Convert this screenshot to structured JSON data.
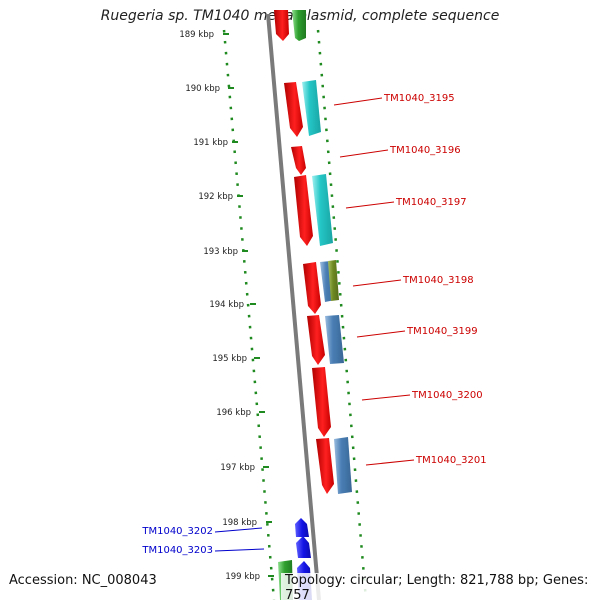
{
  "title": "Ruegeria sp. TM1040 mega plasmid, complete sequence",
  "footer": {
    "accession": "Accession: NC_008043",
    "stats": "Topology: circular; Length: 821,788 bp; Genes: 757"
  },
  "colors": {
    "forward_gene": "#e8141c",
    "reverse_cyan": "#2ec9c9",
    "reverse_steelblue": "#4a7fb5",
    "reverse_olive": "#6f8a23",
    "green_gene": "#2ea02e",
    "blue_gene": "#1414e6",
    "backbone": "#808080",
    "dots": "#1f8a1f",
    "label_red": "#cc0000",
    "label_blue": "#0000cc"
  },
  "ticks": [
    "189 kbp",
    "190 kbp",
    "191 kbp",
    "192 kbp",
    "193 kbp",
    "194 kbp",
    "195 kbp",
    "196 kbp",
    "197 kbp",
    "198 kbp",
    "199 kbp"
  ],
  "gene_labels": [
    {
      "text": "TM1040_3195",
      "color": "red"
    },
    {
      "text": "TM1040_3196",
      "color": "red"
    },
    {
      "text": "TM1040_3197",
      "color": "red"
    },
    {
      "text": "TM1040_3198",
      "color": "red"
    },
    {
      "text": "TM1040_3199",
      "color": "red"
    },
    {
      "text": "TM1040_3200",
      "color": "red"
    },
    {
      "text": "TM1040_3201",
      "color": "red"
    },
    {
      "text": "TM1040_3202",
      "color": "blue"
    },
    {
      "text": "TM1040_3203",
      "color": "blue"
    }
  ]
}
